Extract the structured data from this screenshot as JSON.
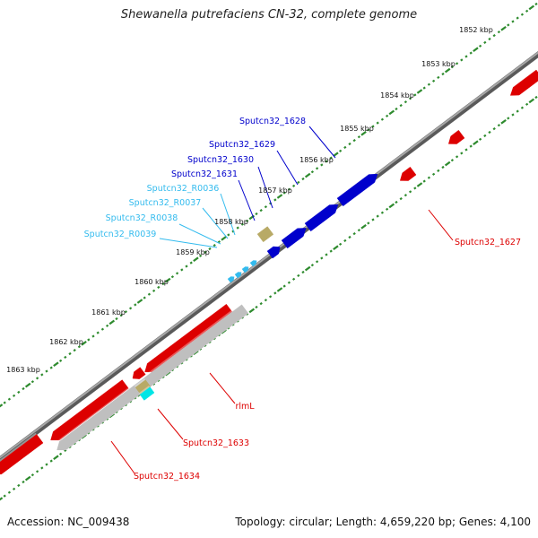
{
  "title": "Shewanella putrefaciens CN-32, complete genome",
  "footer": {
    "accession": "Accession: NC_009438",
    "summary": "Topology: circular; Length: 4,659,220 bp; Genes: 4,100"
  },
  "colors": {
    "backbone": "#8a8a8a",
    "tick": "#2e8b2e",
    "forward_gene": "#0000cc",
    "reverse_gene": "#dd0000",
    "rna_gene": "#33bbee",
    "pseudogene": "#bfbfbf",
    "misc_feature": "#b8aa66",
    "cyan_feature": "#00e5e5"
  },
  "scale_labels": [
    "1852 kbp",
    "1853 kbp",
    "1854 kbp",
    "1855 kbp",
    "1856 kbp",
    "1857 kbp",
    "1858 kbp",
    "1859 kbp",
    "1860 kbp",
    "1861 kbp",
    "1862 kbp",
    "1863 kbp"
  ],
  "gene_labels": {
    "upper": [
      {
        "text": "Sputcn32_1628",
        "kind": "forward"
      },
      {
        "text": "Sputcn32_1629",
        "kind": "forward"
      },
      {
        "text": "Sputcn32_1630",
        "kind": "forward"
      },
      {
        "text": "Sputcn32_1631",
        "kind": "forward"
      },
      {
        "text": "Sputcn32_R0036",
        "kind": "rna"
      },
      {
        "text": "Sputcn32_R0037",
        "kind": "rna"
      },
      {
        "text": "Sputcn32_R0038",
        "kind": "rna"
      },
      {
        "text": "Sputcn32_R0039",
        "kind": "rna"
      }
    ],
    "lower": [
      {
        "text": "Sputcn32_1627",
        "kind": "reverse"
      },
      {
        "text": "rlmL",
        "kind": "reverse"
      },
      {
        "text": "Sputcn32_1633",
        "kind": "reverse"
      },
      {
        "text": "Sputcn32_1634",
        "kind": "reverse"
      }
    ]
  }
}
